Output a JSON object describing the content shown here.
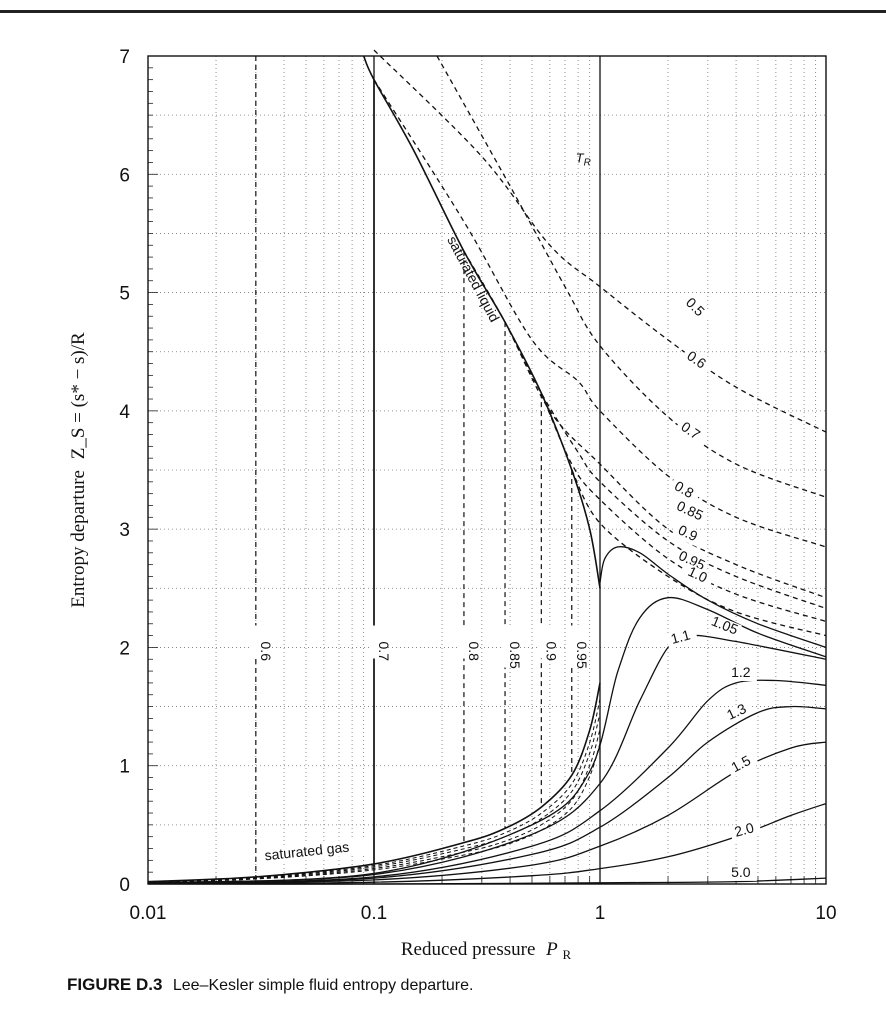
{
  "caption": {
    "figure_number": "FIGURE D.3",
    "text": "Lee–Kesler simple fluid entropy departure."
  },
  "chart_data": {
    "type": "line",
    "title": "",
    "xlabel": "Reduced pressure",
    "xlabel_symbol": "P",
    "xlabel_subscript": "R",
    "ylabel": "Entropy departure",
    "ylabel_formula": "Z_S = (s* − s)/R",
    "x_scale": "log",
    "xlim": [
      0.01,
      10
    ],
    "ylim": [
      0,
      7
    ],
    "x_ticks": [
      "0.01",
      "0.1",
      "1",
      "10"
    ],
    "y_ticks": [
      "0",
      "1",
      "2",
      "3",
      "4",
      "5",
      "6",
      "7"
    ],
    "grid": "dotted",
    "family_label": "T_R",
    "annotations": [
      "saturated liquid",
      "saturated gas"
    ],
    "series": [
      {
        "name": "0.5",
        "style": "dashed",
        "points": [
          [
            0.1,
            7.05
          ],
          [
            0.3,
            6.15
          ],
          [
            0.6,
            5.4
          ],
          [
            1,
            5.05
          ],
          [
            2,
            4.6
          ],
          [
            4,
            4.2
          ],
          [
            10,
            3.82
          ]
        ]
      },
      {
        "name": "0.6",
        "style": "dashed",
        "points": [
          [
            0.19,
            7.0
          ],
          [
            0.4,
            5.9
          ],
          [
            0.7,
            5.05
          ],
          [
            1,
            4.55
          ],
          [
            2,
            3.95
          ],
          [
            4,
            3.55
          ],
          [
            10,
            3.27
          ]
        ]
      },
      {
        "name": "0.7",
        "style": "dashed",
        "points": [
          [
            0.1,
            6.8
          ],
          [
            0.25,
            5.6
          ],
          [
            0.5,
            4.6
          ],
          [
            0.8,
            4.25
          ],
          [
            1,
            4.0
          ],
          [
            2,
            3.45
          ],
          [
            4,
            3.1
          ],
          [
            10,
            2.85
          ]
        ]
      },
      {
        "name": "0.8",
        "style": "dashed",
        "points": [
          [
            0.25,
            5.35
          ],
          [
            0.38,
            4.75
          ],
          [
            0.6,
            4.0
          ],
          [
            1,
            3.55
          ],
          [
            2,
            3.0
          ],
          [
            4,
            2.7
          ],
          [
            10,
            2.42
          ]
        ]
      },
      {
        "name": "0.85",
        "style": "dashed",
        "points": [
          [
            0.38,
            4.75
          ],
          [
            0.55,
            4.15
          ],
          [
            0.8,
            3.65
          ],
          [
            1,
            3.4
          ],
          [
            2,
            2.9
          ],
          [
            4,
            2.6
          ],
          [
            10,
            2.33
          ]
        ]
      },
      {
        "name": "0.9",
        "style": "dashed",
        "points": [
          [
            0.55,
            4.15
          ],
          [
            0.75,
            3.55
          ],
          [
            1,
            3.25
          ],
          [
            2,
            2.75
          ],
          [
            4,
            2.45
          ],
          [
            10,
            2.22
          ]
        ]
      },
      {
        "name": "0.95",
        "style": "dashed",
        "points": [
          [
            0.75,
            3.5
          ],
          [
            1,
            3.05
          ],
          [
            2,
            2.6
          ],
          [
            4,
            2.3
          ],
          [
            10,
            2.1
          ]
        ]
      },
      {
        "name": "1.0",
        "style": "solid",
        "points": [
          [
            1,
            2.55
          ],
          [
            1.05,
            2.75
          ],
          [
            1.2,
            2.85
          ],
          [
            1.5,
            2.8
          ],
          [
            2,
            2.62
          ],
          [
            3,
            2.4
          ],
          [
            5,
            2.2
          ],
          [
            10,
            2.0
          ]
        ]
      },
      {
        "name": "1.05",
        "style": "solid",
        "points": [
          [
            0.01,
            0.01
          ],
          [
            0.1,
            0.09
          ],
          [
            0.5,
            0.5
          ],
          [
            0.9,
            0.95
          ],
          [
            1.2,
            1.8
          ],
          [
            1.5,
            2.25
          ],
          [
            2,
            2.42
          ],
          [
            3,
            2.32
          ],
          [
            5,
            2.12
          ],
          [
            10,
            1.92
          ]
        ]
      },
      {
        "name": "1.1",
        "style": "solid",
        "points": [
          [
            0.01,
            0.01
          ],
          [
            0.1,
            0.08
          ],
          [
            0.5,
            0.42
          ],
          [
            1,
            0.85
          ],
          [
            1.5,
            1.55
          ],
          [
            2,
            2.0
          ],
          [
            2.5,
            2.1
          ],
          [
            4,
            2.05
          ],
          [
            10,
            1.9
          ]
        ]
      },
      {
        "name": "1.2",
        "style": "solid",
        "points": [
          [
            0.01,
            0.005
          ],
          [
            0.1,
            0.06
          ],
          [
            0.5,
            0.32
          ],
          [
            1,
            0.62
          ],
          [
            2,
            1.15
          ],
          [
            3,
            1.55
          ],
          [
            4,
            1.7
          ],
          [
            6,
            1.72
          ],
          [
            10,
            1.68
          ]
        ]
      },
      {
        "name": "1.3",
        "style": "solid",
        "points": [
          [
            0.01,
            0.005
          ],
          [
            0.1,
            0.05
          ],
          [
            0.5,
            0.25
          ],
          [
            1,
            0.48
          ],
          [
            2,
            0.9
          ],
          [
            3,
            1.2
          ],
          [
            5,
            1.45
          ],
          [
            7,
            1.5
          ],
          [
            10,
            1.48
          ]
        ]
      },
      {
        "name": "1.5",
        "style": "solid",
        "points": [
          [
            0.01,
            0.003
          ],
          [
            0.1,
            0.035
          ],
          [
            0.5,
            0.16
          ],
          [
            1,
            0.32
          ],
          [
            2,
            0.58
          ],
          [
            4,
            0.95
          ],
          [
            7,
            1.15
          ],
          [
            10,
            1.2
          ]
        ]
      },
      {
        "name": "2.0",
        "style": "solid",
        "points": [
          [
            0.01,
            0.001
          ],
          [
            0.1,
            0.015
          ],
          [
            0.5,
            0.07
          ],
          [
            1,
            0.13
          ],
          [
            2,
            0.23
          ],
          [
            4,
            0.4
          ],
          [
            7,
            0.58
          ],
          [
            10,
            0.68
          ]
        ]
      },
      {
        "name": "5.0",
        "style": "solid",
        "points": [
          [
            0.01,
            0.0
          ],
          [
            0.1,
            0.0
          ],
          [
            1,
            0.01
          ],
          [
            4,
            0.02
          ],
          [
            10,
            0.05
          ]
        ]
      },
      {
        "name": "saturated liquid",
        "style": "solid",
        "points": [
          [
            0.09,
            7.0
          ],
          [
            0.1,
            6.8
          ],
          [
            0.15,
            6.2
          ],
          [
            0.25,
            5.35
          ],
          [
            0.38,
            4.75
          ],
          [
            0.55,
            4.15
          ],
          [
            0.75,
            3.5
          ],
          [
            0.9,
            3.0
          ],
          [
            1.0,
            2.5
          ]
        ]
      },
      {
        "name": "saturated gas",
        "style": "solid",
        "points": [
          [
            0.01,
            0.02
          ],
          [
            0.03,
            0.06
          ],
          [
            0.1,
            0.17
          ],
          [
            0.25,
            0.35
          ],
          [
            0.38,
            0.47
          ],
          [
            0.55,
            0.65
          ],
          [
            0.75,
            0.92
          ],
          [
            0.9,
            1.3
          ],
          [
            1.0,
            1.7
          ]
        ]
      }
    ],
    "isotherm_labels": [
      "0.6",
      "0.7",
      "0.8",
      "0.85",
      "0.9",
      "0.95"
    ]
  }
}
